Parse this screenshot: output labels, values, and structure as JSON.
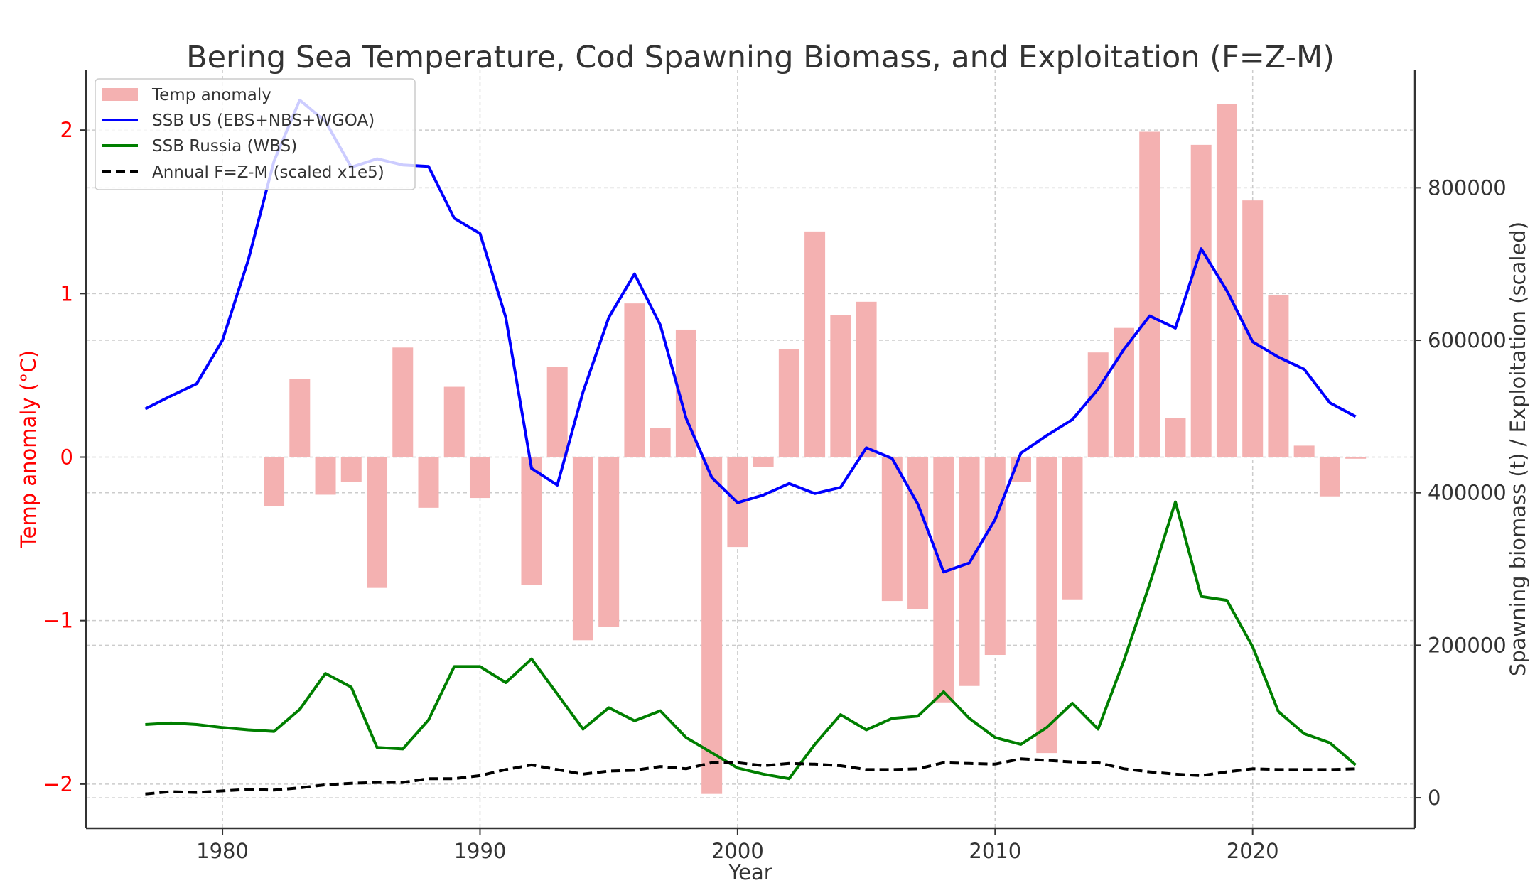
{
  "chart_data": {
    "type": "bar+line",
    "title": "Bering Sea Temperature, Cod Spawning Biomass, and Exploitation (F=Z-M)",
    "xlabel": "Year",
    "ylabel_left": "Temp anomaly (°C)",
    "ylabel_right": "Spawning biomass (t) / Exploitation (scaled)",
    "xlim": [
      1974.7,
      1926.3
    ],
    "ylim_left": [
      -2.27,
      2.37
    ],
    "ylim_right": [
      -40000,
      955000
    ],
    "x_ticks": [
      1980,
      1990,
      2000,
      2010,
      2020
    ],
    "y_left_ticks": [
      -2,
      -1,
      0,
      1,
      2
    ],
    "y_left_tick_labels": [
      "−2",
      "−1",
      "0",
      "1",
      "2"
    ],
    "y_right_ticks": [
      0,
      200000,
      400000,
      600000,
      800000
    ],
    "grid": true,
    "legend_position": "top-left",
    "colors": {
      "temp_anomaly": "#f4b1b1",
      "ssb_us": "#0000ff",
      "ssb_russia": "#007f00",
      "f_scaled": "#000000",
      "left_axis": "#ff0000",
      "text": "#333333"
    },
    "years": [
      1977,
      1978,
      1979,
      1980,
      1981,
      1982,
      1983,
      1984,
      1985,
      1986,
      1987,
      1988,
      1989,
      1990,
      1991,
      1992,
      1993,
      1994,
      1995,
      1996,
      1997,
      1998,
      1999,
      2000,
      2001,
      2002,
      2003,
      2004,
      2005,
      2006,
      2007,
      2008,
      2009,
      2010,
      2011,
      2012,
      2013,
      2014,
      2015,
      2016,
      2017,
      2018,
      2019,
      2020,
      2021,
      2022,
      2023,
      2024
    ],
    "series": [
      {
        "name": "Temp anomaly",
        "type": "bar",
        "axis": "left",
        "values": [
          0,
          0,
          0,
          0,
          0,
          -0.3,
          0.48,
          -0.23,
          -0.15,
          -0.8,
          0.67,
          -0.31,
          0.43,
          -0.25,
          0,
          -0.78,
          0.55,
          -1.12,
          -1.04,
          0.94,
          0.18,
          0.78,
          -2.06,
          -0.55,
          -0.06,
          0.66,
          1.38,
          0.87,
          0.95,
          -0.88,
          -0.93,
          -1.5,
          -1.4,
          -1.21,
          -0.15,
          -1.81,
          -0.87,
          0.64,
          0.79,
          1.99,
          0.24,
          1.91,
          2.16,
          1.57,
          0.99,
          0.07,
          -0.24,
          -0.01
        ]
      },
      {
        "name": "SSB US (EBS+NBS+WGOA)",
        "type": "line",
        "axis": "right",
        "values": [
          510000,
          527000,
          543000,
          600000,
          705000,
          835000,
          915000,
          887000,
          827000,
          838000,
          830000,
          828000,
          760000,
          740000,
          630000,
          432000,
          410000,
          532000,
          630000,
          687000,
          620000,
          498000,
          420000,
          387000,
          397000,
          412000,
          399000,
          407000,
          459000,
          445000,
          385000,
          296000,
          308000,
          365000,
          452000,
          475000,
          496000,
          536000,
          588000,
          632000,
          616000,
          720000,
          665000,
          598000,
          578000,
          562000,
          518000,
          500000
        ]
      },
      {
        "name": "SSB Russia (WBS)",
        "type": "line",
        "axis": "right",
        "values": [
          96000,
          98000,
          96000,
          92000,
          89000,
          87000,
          116000,
          163000,
          145000,
          66000,
          64000,
          102000,
          172000,
          172000,
          151000,
          182000,
          136000,
          90000,
          118000,
          101000,
          114000,
          79000,
          59000,
          39000,
          31000,
          25000,
          70000,
          109000,
          89000,
          104000,
          107000,
          139000,
          104000,
          79000,
          70000,
          92000,
          124000,
          90000,
          180000,
          280000,
          388000,
          264000,
          259000,
          198000,
          113000,
          84000,
          72000,
          43000
        ]
      },
      {
        "name": "Annual F=Z-M (scaled x1e5)",
        "type": "line",
        "axis": "right",
        "dashed": true,
        "values": [
          5000,
          8000,
          7000,
          9000,
          11000,
          10000,
          13000,
          17000,
          19000,
          20000,
          20000,
          25000,
          25000,
          29000,
          37000,
          43000,
          37000,
          31000,
          35000,
          36000,
          41000,
          38000,
          46000,
          46000,
          42000,
          45000,
          44000,
          42000,
          37000,
          37000,
          38000,
          46000,
          45000,
          44000,
          51000,
          49000,
          47000,
          46000,
          38000,
          34000,
          31000,
          29000,
          34000,
          38000,
          37000,
          37000,
          37000,
          38000
        ]
      }
    ]
  }
}
